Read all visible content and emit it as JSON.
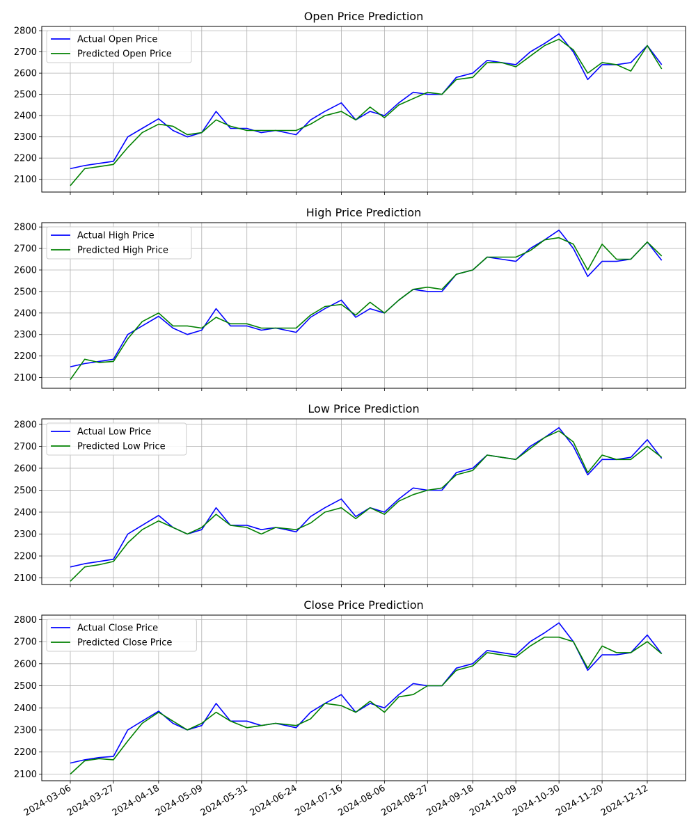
{
  "x_ticks": [
    "2024-03-06",
    "2024-03-27",
    "2024-04-18",
    "2024-05-09",
    "2024-05-31",
    "2024-06-24",
    "2024-07-16",
    "2024-08-06",
    "2024-08-27",
    "2024-09-18",
    "2024-10-09",
    "2024-10-30",
    "2024-11-20",
    "2024-12-12"
  ],
  "chart_data": [
    {
      "type": "line",
      "title": "Open Price Prediction",
      "xlabel": "",
      "ylabel": "",
      "ylim": [
        2040,
        2820
      ],
      "yticks": [
        2100,
        2200,
        2300,
        2400,
        2500,
        2600,
        2700,
        2800
      ],
      "grid": true,
      "legend": "top-left",
      "x": [
        "2024-03-06",
        "2024-03-13",
        "2024-03-20",
        "2024-03-27",
        "2024-04-03",
        "2024-04-10",
        "2024-04-18",
        "2024-04-25",
        "2024-05-02",
        "2024-05-09",
        "2024-05-16",
        "2024-05-23",
        "2024-05-31",
        "2024-06-07",
        "2024-06-14",
        "2024-06-24",
        "2024-07-01",
        "2024-07-08",
        "2024-07-16",
        "2024-07-23",
        "2024-07-30",
        "2024-08-06",
        "2024-08-13",
        "2024-08-20",
        "2024-08-27",
        "2024-09-03",
        "2024-09-10",
        "2024-09-18",
        "2024-09-25",
        "2024-10-02",
        "2024-10-09",
        "2024-10-16",
        "2024-10-23",
        "2024-10-30",
        "2024-11-06",
        "2024-11-13",
        "2024-11-20",
        "2024-11-27",
        "2024-12-04",
        "2024-12-12",
        "2024-12-19"
      ],
      "series": [
        {
          "name": "Actual Open Price",
          "color": "#0000ff",
          "values": [
            2150,
            2165,
            2175,
            2185,
            2300,
            2340,
            2385,
            2330,
            2300,
            2320,
            2420,
            2340,
            2340,
            2320,
            2330,
            2310,
            2380,
            2420,
            2460,
            2380,
            2420,
            2400,
            2460,
            2510,
            2500,
            2500,
            2580,
            2600,
            2660,
            2650,
            2640,
            2700,
            2740,
            2785,
            2700,
            2570,
            2640,
            2640,
            2650,
            2730,
            2640
          ]
        },
        {
          "name": "Predicted Open Price",
          "color": "#008000",
          "values": [
            2070,
            2150,
            2160,
            2170,
            2250,
            2320,
            2360,
            2350,
            2310,
            2320,
            2380,
            2350,
            2330,
            2330,
            2330,
            2330,
            2360,
            2400,
            2420,
            2380,
            2440,
            2390,
            2450,
            2480,
            2510,
            2500,
            2570,
            2580,
            2650,
            2650,
            2630,
            2680,
            2730,
            2760,
            2710,
            2600,
            2650,
            2640,
            2610,
            2730,
            2620
          ]
        }
      ]
    },
    {
      "type": "line",
      "title": "High Price Prediction",
      "xlabel": "",
      "ylabel": "",
      "ylim": [
        2050,
        2820
      ],
      "yticks": [
        2100,
        2200,
        2300,
        2400,
        2500,
        2600,
        2700,
        2800
      ],
      "grid": true,
      "legend": "top-left",
      "x": [
        "2024-03-06",
        "2024-03-13",
        "2024-03-20",
        "2024-03-27",
        "2024-04-03",
        "2024-04-10",
        "2024-04-18",
        "2024-04-25",
        "2024-05-02",
        "2024-05-09",
        "2024-05-16",
        "2024-05-23",
        "2024-05-31",
        "2024-06-07",
        "2024-06-14",
        "2024-06-24",
        "2024-07-01",
        "2024-07-08",
        "2024-07-16",
        "2024-07-23",
        "2024-07-30",
        "2024-08-06",
        "2024-08-13",
        "2024-08-20",
        "2024-08-27",
        "2024-09-03",
        "2024-09-10",
        "2024-09-18",
        "2024-09-25",
        "2024-10-02",
        "2024-10-09",
        "2024-10-16",
        "2024-10-23",
        "2024-10-30",
        "2024-11-06",
        "2024-11-13",
        "2024-11-20",
        "2024-11-27",
        "2024-12-04",
        "2024-12-12",
        "2024-12-19"
      ],
      "series": [
        {
          "name": "Actual High Price",
          "color": "#0000ff",
          "values": [
            2150,
            2165,
            2175,
            2185,
            2300,
            2340,
            2385,
            2330,
            2300,
            2320,
            2420,
            2340,
            2340,
            2320,
            2330,
            2310,
            2380,
            2420,
            2460,
            2380,
            2420,
            2400,
            2460,
            2510,
            2500,
            2500,
            2580,
            2600,
            2660,
            2650,
            2640,
            2700,
            2740,
            2785,
            2700,
            2570,
            2640,
            2640,
            2650,
            2730,
            2645
          ]
        },
        {
          "name": "Predicted High Price",
          "color": "#008000",
          "values": [
            2090,
            2185,
            2170,
            2175,
            2280,
            2360,
            2400,
            2340,
            2340,
            2330,
            2380,
            2350,
            2350,
            2330,
            2330,
            2330,
            2390,
            2430,
            2440,
            2390,
            2450,
            2400,
            2460,
            2510,
            2520,
            2510,
            2580,
            2600,
            2660,
            2660,
            2660,
            2690,
            2740,
            2750,
            2720,
            2600,
            2720,
            2650,
            2650,
            2730,
            2665
          ]
        }
      ]
    },
    {
      "type": "line",
      "title": "Low Price Prediction",
      "xlabel": "",
      "ylabel": "",
      "ylim": [
        2070,
        2825
      ],
      "yticks": [
        2100,
        2200,
        2300,
        2400,
        2500,
        2600,
        2700,
        2800
      ],
      "grid": true,
      "legend": "top-left",
      "x": [
        "2024-03-06",
        "2024-03-13",
        "2024-03-20",
        "2024-03-27",
        "2024-04-03",
        "2024-04-10",
        "2024-04-18",
        "2024-04-25",
        "2024-05-02",
        "2024-05-09",
        "2024-05-16",
        "2024-05-23",
        "2024-05-31",
        "2024-06-07",
        "2024-06-14",
        "2024-06-24",
        "2024-07-01",
        "2024-07-08",
        "2024-07-16",
        "2024-07-23",
        "2024-07-30",
        "2024-08-06",
        "2024-08-13",
        "2024-08-20",
        "2024-08-27",
        "2024-09-03",
        "2024-09-10",
        "2024-09-18",
        "2024-09-25",
        "2024-10-02",
        "2024-10-09",
        "2024-10-16",
        "2024-10-23",
        "2024-10-30",
        "2024-11-06",
        "2024-11-13",
        "2024-11-20",
        "2024-11-27",
        "2024-12-04",
        "2024-12-12",
        "2024-12-19"
      ],
      "series": [
        {
          "name": "Actual Low Price",
          "color": "#0000ff",
          "values": [
            2150,
            2165,
            2175,
            2185,
            2300,
            2340,
            2385,
            2330,
            2300,
            2320,
            2420,
            2340,
            2340,
            2320,
            2330,
            2310,
            2380,
            2420,
            2460,
            2380,
            2420,
            2400,
            2460,
            2510,
            2500,
            2500,
            2580,
            2600,
            2660,
            2650,
            2640,
            2700,
            2740,
            2785,
            2700,
            2570,
            2640,
            2640,
            2650,
            2730,
            2645
          ]
        },
        {
          "name": "Predicted Low Price",
          "color": "#008000",
          "values": [
            2085,
            2150,
            2160,
            2175,
            2260,
            2320,
            2360,
            2330,
            2300,
            2330,
            2390,
            2340,
            2330,
            2300,
            2330,
            2320,
            2350,
            2400,
            2420,
            2370,
            2420,
            2390,
            2450,
            2480,
            2500,
            2510,
            2570,
            2590,
            2660,
            2650,
            2640,
            2690,
            2740,
            2770,
            2720,
            2580,
            2660,
            2640,
            2640,
            2700,
            2650
          ]
        }
      ]
    },
    {
      "type": "line",
      "title": "Close Price Prediction",
      "xlabel": "",
      "ylabel": "",
      "ylim": [
        2070,
        2820
      ],
      "yticks": [
        2100,
        2200,
        2300,
        2400,
        2500,
        2600,
        2700,
        2800
      ],
      "grid": true,
      "legend": "top-left",
      "x": [
        "2024-03-06",
        "2024-03-13",
        "2024-03-20",
        "2024-03-27",
        "2024-04-03",
        "2024-04-10",
        "2024-04-18",
        "2024-04-25",
        "2024-05-02",
        "2024-05-09",
        "2024-05-16",
        "2024-05-23",
        "2024-05-31",
        "2024-06-07",
        "2024-06-14",
        "2024-06-24",
        "2024-07-01",
        "2024-07-08",
        "2024-07-16",
        "2024-07-23",
        "2024-07-30",
        "2024-08-06",
        "2024-08-13",
        "2024-08-20",
        "2024-08-27",
        "2024-09-03",
        "2024-09-10",
        "2024-09-18",
        "2024-09-25",
        "2024-10-02",
        "2024-10-09",
        "2024-10-16",
        "2024-10-23",
        "2024-10-30",
        "2024-11-06",
        "2024-11-13",
        "2024-11-20",
        "2024-11-27",
        "2024-12-04",
        "2024-12-12",
        "2024-12-19"
      ],
      "series": [
        {
          "name": "Actual Close Price",
          "color": "#0000ff",
          "values": [
            2150,
            2165,
            2175,
            2180,
            2300,
            2340,
            2385,
            2330,
            2300,
            2320,
            2420,
            2340,
            2340,
            2320,
            2330,
            2310,
            2380,
            2420,
            2460,
            2380,
            2420,
            2400,
            2460,
            2510,
            2500,
            2500,
            2580,
            2600,
            2660,
            2650,
            2640,
            2700,
            2740,
            2785,
            2700,
            2570,
            2640,
            2640,
            2650,
            2730,
            2645
          ]
        },
        {
          "name": "Predicted Close Price",
          "color": "#008000",
          "values": [
            2100,
            2160,
            2170,
            2165,
            2250,
            2330,
            2380,
            2340,
            2300,
            2330,
            2380,
            2340,
            2310,
            2320,
            2330,
            2320,
            2350,
            2420,
            2410,
            2380,
            2430,
            2380,
            2450,
            2460,
            2500,
            2500,
            2570,
            2590,
            2650,
            2640,
            2630,
            2680,
            2720,
            2720,
            2700,
            2580,
            2680,
            2650,
            2650,
            2700,
            2645
          ]
        }
      ]
    }
  ]
}
